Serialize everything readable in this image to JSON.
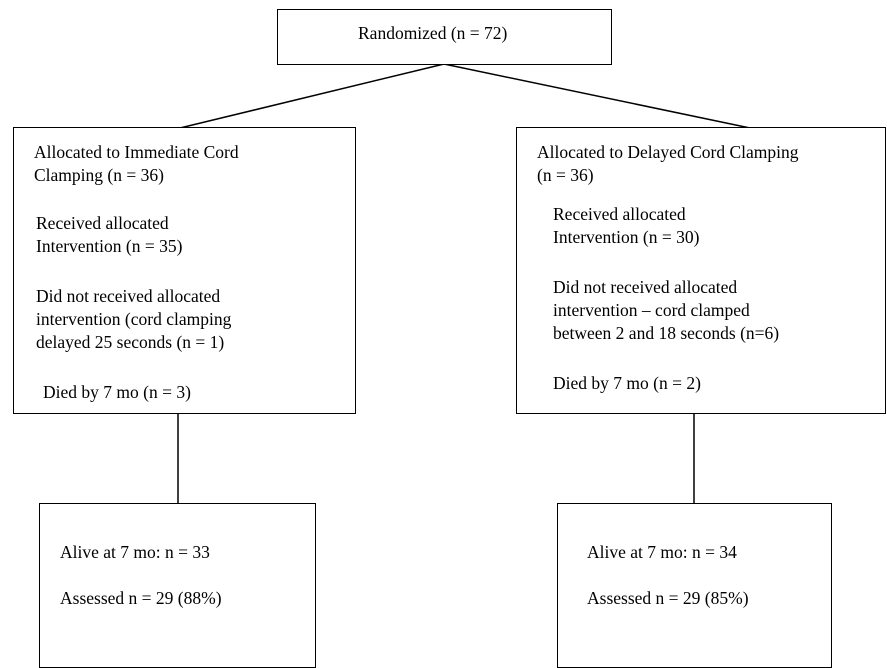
{
  "randomized": {
    "label": "Randomized (n = 72)"
  },
  "immediate": {
    "title_1": "Allocated to Immediate Cord",
    "title_2": "Clamping (n = 36)",
    "received_1": "Received allocated",
    "received_2": "Intervention (n = 35)",
    "not_received_1": "Did not received allocated",
    "not_received_2": "intervention (cord clamping",
    "not_received_3": "delayed 25 seconds (n = 1)",
    "died": "Died by 7 mo (n = 3)"
  },
  "delayed": {
    "title_1": "Allocated to Delayed Cord Clamping",
    "title_2": "(n = 36)",
    "received_1": "Received allocated",
    "received_2": "Intervention (n = 30)",
    "not_received_1": "Did not received allocated",
    "not_received_2": "intervention – cord clamped",
    "not_received_3": "between 2 and 18 seconds (n=6)",
    "died": "Died by 7 mo (n = 2)"
  },
  "immediate_outcome": {
    "alive": "Alive at 7 mo: n = 33",
    "assessed": "Assessed n = 29 (88%)"
  },
  "delayed_outcome": {
    "alive": "Alive at 7 mo: n = 34",
    "assessed": "Assessed n = 29 (85%)"
  }
}
